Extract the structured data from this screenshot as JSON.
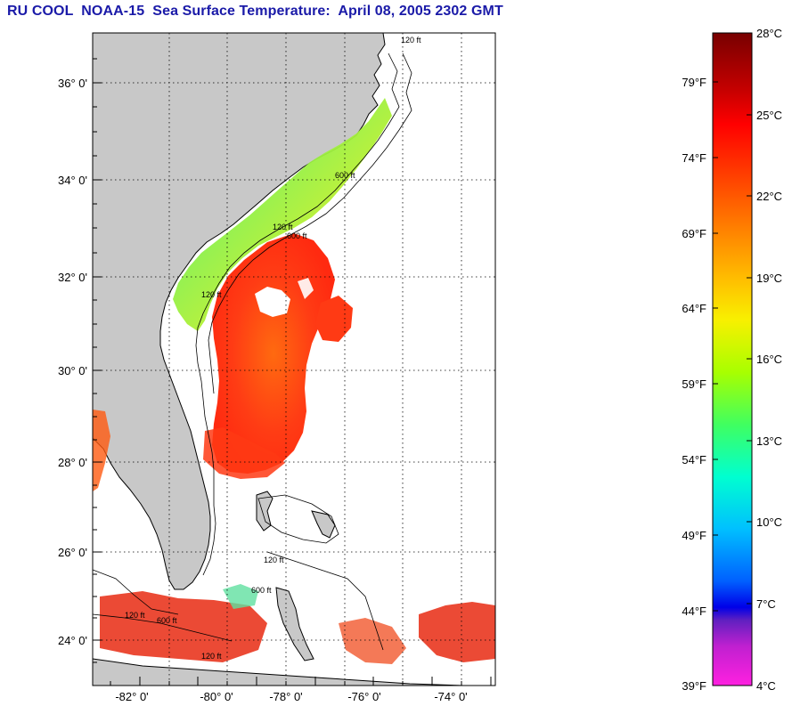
{
  "title": "RU COOL  NOAA-15  Sea Surface Temperature:  April 08, 2005 2302 GMT",
  "map": {
    "lat_labels": [
      "36° 0'",
      "34° 0'",
      "32° 0'",
      "30° 0'",
      "28° 0'",
      "26° 0'",
      "24° 0'"
    ],
    "lon_labels": [
      "-82° 0'",
      "-80° 0'",
      "-78° 0'",
      "-76° 0'",
      "-74° 0'"
    ],
    "contour_labels": [
      "120 ft",
      "600 ft",
      "120 ft",
      "600 ft",
      "120 ft",
      "120 ft",
      "600 ft",
      "120 ft",
      "600 ft",
      "120 ft"
    ],
    "colors": {
      "land": "#c8c8c8",
      "ocean_nodata": "#ffffff",
      "gulf_stream": "#ff3010",
      "shelf_cool": "#8cf050",
      "coastline": "#000000"
    }
  },
  "colorbar": {
    "celsius_labels": [
      "28°C",
      "25°C",
      "22°C",
      "19°C",
      "16°C",
      "13°C",
      "10°C",
      "7°C",
      "4°C"
    ],
    "fahrenheit_labels": [
      "79°F",
      "74°F",
      "69°F",
      "64°F",
      "59°F",
      "54°F",
      "49°F",
      "44°F",
      "39°F"
    ]
  }
}
